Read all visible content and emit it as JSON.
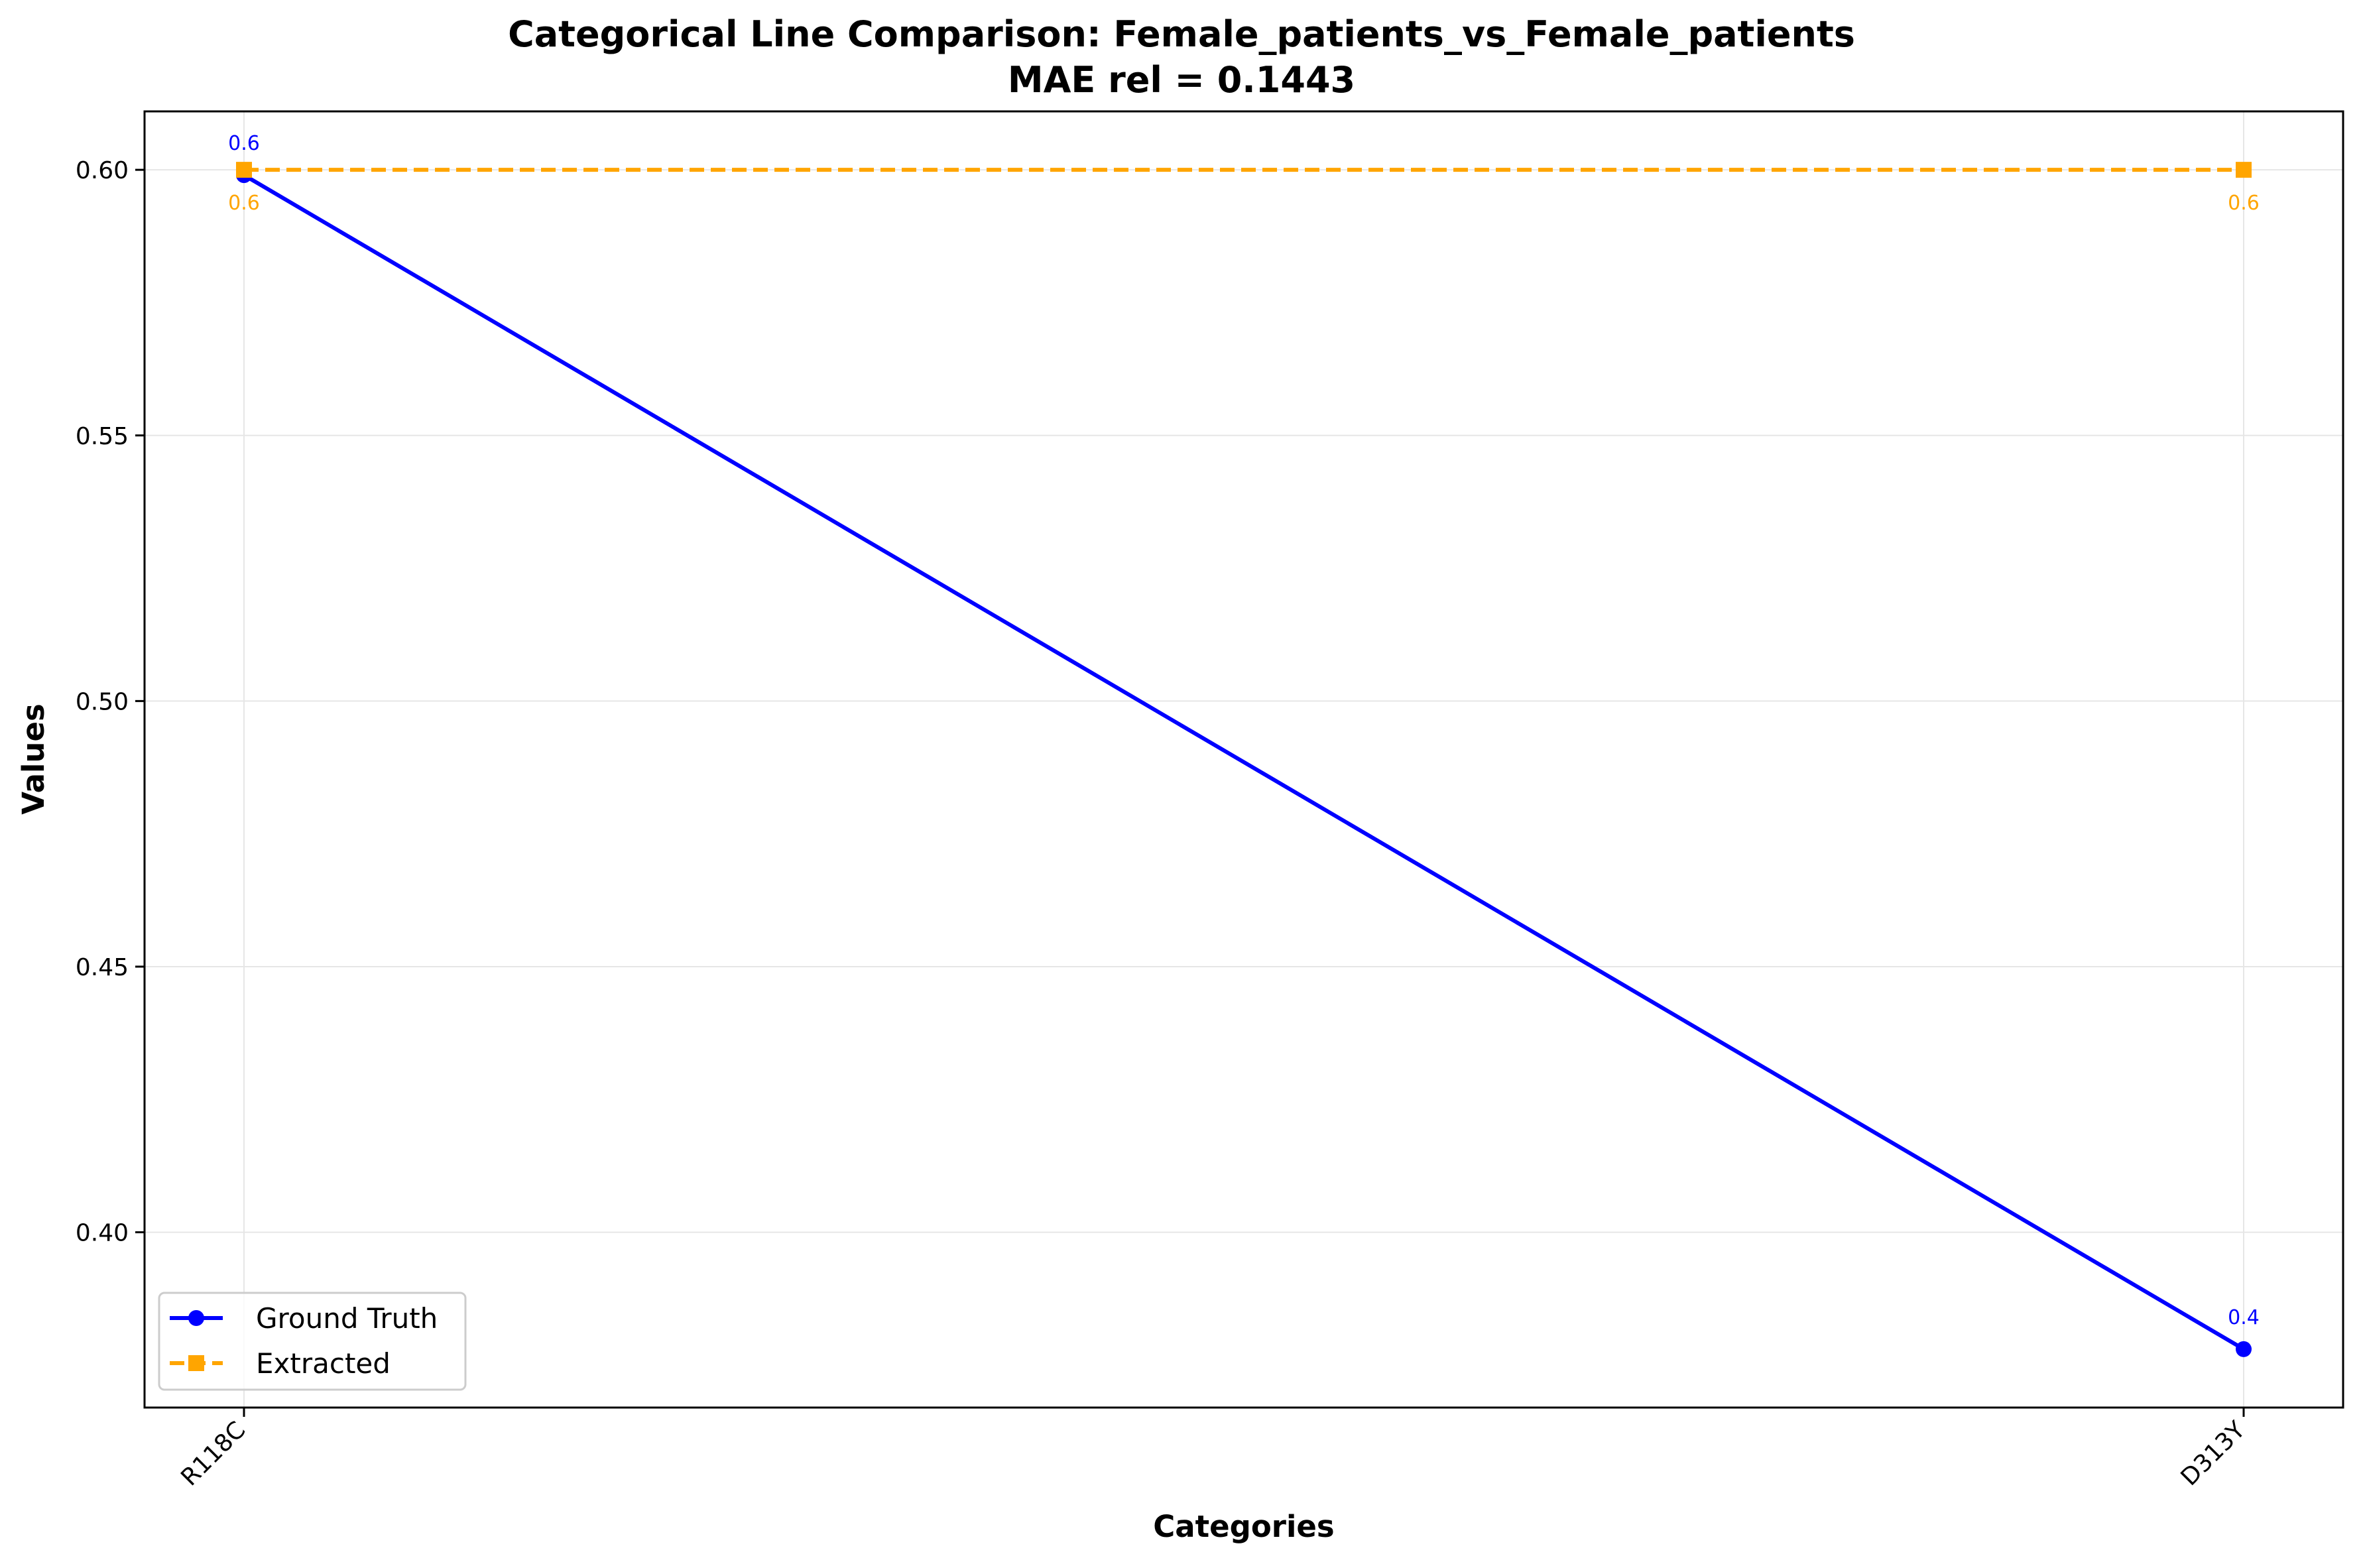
{
  "chart_data": {
    "type": "line",
    "title": "Categorical Line Comparison: Female_patients_vs_Female_patients",
    "subtitle": "MAE rel = 0.1443",
    "xlabel": "Categories",
    "ylabel": "Values",
    "categories": [
      "R118C",
      "D313Y"
    ],
    "ylim": [
      0.367,
      0.611
    ],
    "yticks": [
      0.4,
      0.45,
      0.5,
      0.55,
      0.6
    ],
    "ytick_labels": [
      "0.40",
      "0.45",
      "0.50",
      "0.55",
      "0.60"
    ],
    "grid": true,
    "legend_position": "lower-left",
    "series": [
      {
        "name": "Ground Truth",
        "values": [
          0.599,
          0.378
        ],
        "data_labels": [
          "0.6",
          "0.4"
        ],
        "color": "#0000ff",
        "marker": "circle",
        "line_style": "solid"
      },
      {
        "name": "Extracted",
        "values": [
          0.6,
          0.6
        ],
        "data_labels": [
          "0.6",
          "0.6"
        ],
        "color": "#ffa500",
        "marker": "square",
        "line_style": "dashed"
      }
    ]
  }
}
